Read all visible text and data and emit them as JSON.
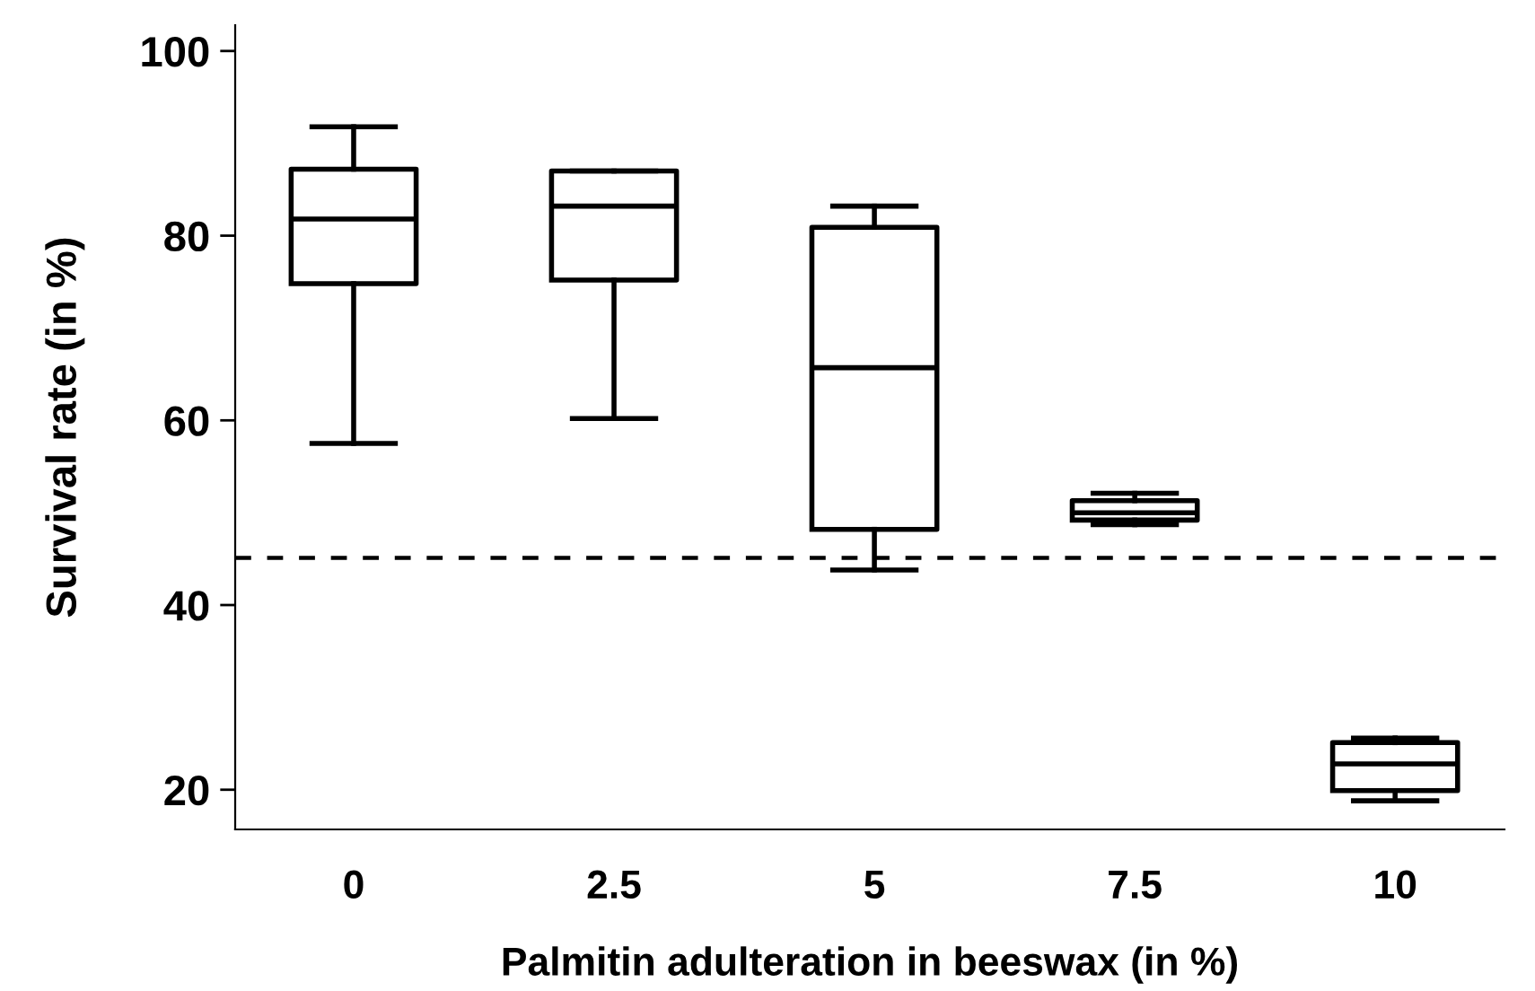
{
  "chart_data": {
    "type": "box",
    "xlabel": "Palmitin adulteration in beeswax (in %)",
    "ylabel": "Survival rate (in %)",
    "categories": [
      "0",
      "2.5",
      "5",
      "7.5",
      "10"
    ],
    "boxes": [
      {
        "low": 57.5,
        "q1": 74.8,
        "median": 81.8,
        "q3": 87.2,
        "high": 91.8
      },
      {
        "low": 60.2,
        "q1": 75.2,
        "median": 83.2,
        "q3": 87.0,
        "high": 87.0
      },
      {
        "low": 43.8,
        "q1": 48.2,
        "median": 65.7,
        "q3": 80.9,
        "high": 83.2
      },
      {
        "low": 48.7,
        "q1": 49.2,
        "median": 50.0,
        "q3": 51.3,
        "high": 52.1
      },
      {
        "low": 18.8,
        "q1": 19.9,
        "median": 22.8,
        "q3": 25.1,
        "high": 25.6
      }
    ],
    "color": "#000000",
    "ylim": [
      15.7,
      102.8
    ],
    "yticks": [
      20,
      40,
      60,
      80,
      100
    ],
    "ref_lines": [
      {
        "axis": "y",
        "value": 45.1,
        "line_style": "dashed",
        "color": "#000000"
      }
    ],
    "grid": false
  }
}
